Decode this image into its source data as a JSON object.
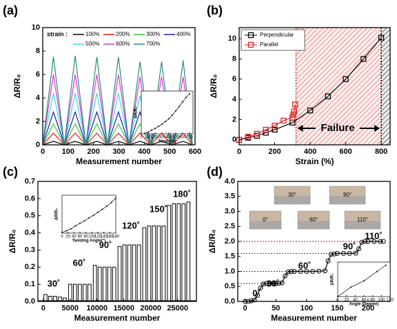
{
  "chart_data": [
    {
      "type": "line",
      "panel_label": "(a)",
      "xlabel": "Measurement number",
      "ylabel": "ΔR/R₀",
      "xlim": [
        0,
        600
      ],
      "xticks": [
        0,
        100,
        200,
        300,
        400,
        500,
        600
      ],
      "ylim": [
        0,
        10
      ],
      "yticks": [
        0,
        2,
        4,
        6,
        8,
        10
      ],
      "legend_title": "strain :",
      "x": [
        0,
        42,
        85,
        128,
        170,
        213,
        255,
        298,
        340,
        383,
        425,
        468,
        510,
        553,
        590
      ],
      "series": [
        {
          "name": "100%",
          "color": "#000000",
          "values": [
            0,
            0.3,
            0,
            0.3,
            0,
            0.3,
            0,
            0.3,
            0,
            0.3,
            0,
            0.3,
            0,
            0.3,
            0
          ]
        },
        {
          "name": "200%",
          "color": "#e8141c",
          "values": [
            0,
            1.0,
            0,
            1.0,
            0,
            1.0,
            0,
            1.0,
            0,
            1.0,
            0,
            1.0,
            0,
            1.0,
            0
          ]
        },
        {
          "name": "300%",
          "color": "#33cc33",
          "values": [
            0,
            1.8,
            0,
            1.8,
            0,
            1.8,
            0,
            1.8,
            0,
            1.8,
            0,
            1.8,
            0,
            1.8,
            0
          ]
        },
        {
          "name": "400%",
          "color": "#1a1aa8",
          "values": [
            0,
            2.8,
            0,
            2.8,
            0,
            2.8,
            0,
            2.8,
            0,
            2.8,
            0,
            2.8,
            0,
            2.8,
            0
          ]
        },
        {
          "name": "500%",
          "color": "#33dddd",
          "values": [
            0,
            4.4,
            0,
            4.4,
            0,
            4.4,
            0,
            4.4,
            0,
            4.2,
            0,
            4.2,
            0,
            4.2,
            0
          ]
        },
        {
          "name": "600%",
          "color": "#dd33dd",
          "values": [
            0,
            6.0,
            0,
            6.0,
            0,
            6.0,
            0,
            6.0,
            0,
            5.8,
            0,
            5.8,
            0,
            5.8,
            0
          ]
        },
        {
          "name": "700%",
          "color": "#2a8a7a",
          "values": [
            0,
            7.5,
            0,
            7.6,
            0,
            7.5,
            0,
            7.5,
            0,
            7.1,
            0,
            7.1,
            0,
            7.2,
            0
          ]
        }
      ]
    },
    {
      "type": "line",
      "xlabel": "Strain(%)",
      "ylabel": "ΔR/R₀",
      "xlim": [
        0,
        750
      ],
      "xticks": [
        0,
        100,
        200,
        300,
        400,
        500,
        600,
        700
      ],
      "ylim": [
        0,
        8
      ],
      "series": [
        {
          "color": "#000000",
          "marker": "dot",
          "x": [
            50,
            100,
            150,
            200,
            250,
            300,
            350,
            400,
            450,
            500,
            550,
            600,
            650,
            700
          ],
          "values": [
            0.1,
            0.3,
            0.7,
            1.0,
            1.4,
            1.8,
            2.3,
            2.8,
            3.5,
            4.3,
            5.1,
            6.0,
            6.8,
            7.5
          ]
        }
      ]
    },
    {
      "type": "line",
      "panel_label": "(b)",
      "xlabel": "Strain (%)",
      "ylabel": "ΔR/R₀",
      "xlim": [
        0,
        850
      ],
      "xticks": [
        0,
        200,
        400,
        600,
        800
      ],
      "ylim": [
        -0.5,
        11.1
      ],
      "yticks": [
        0,
        2,
        4,
        6,
        8,
        10
      ],
      "legend": "upper left",
      "annotations": [
        "Failure"
      ],
      "shaded_regions": [
        {
          "xlim": [
            320,
            800
          ],
          "color": "#e03030"
        },
        {
          "xlim": [
            800,
            850
          ],
          "color": "#000000"
        }
      ],
      "series": [
        {
          "name": "Perpendicular",
          "color": "#000000",
          "marker": "square",
          "x": [
            0,
            50,
            100,
            150,
            200,
            300,
            400,
            500,
            600,
            700,
            800
          ],
          "values": [
            0,
            0.2,
            0.4,
            0.7,
            1.0,
            1.7,
            2.9,
            4.3,
            6.0,
            8.0,
            10.1
          ]
        },
        {
          "name": "Parallel",
          "color": "#e02020",
          "marker": "square",
          "x": [
            0,
            50,
            100,
            150,
            200,
            250,
            300,
            305,
            310,
            315
          ],
          "values": [
            0,
            0.3,
            0.6,
            1.0,
            1.4,
            1.9,
            2.2,
            2.5,
            2.8,
            3.5
          ]
        }
      ]
    },
    {
      "type": "pulse",
      "panel_label": "(c)",
      "xlabel": "Measurement number",
      "ylabel": "ΔR/R₀",
      "xlim": [
        -1000,
        28500
      ],
      "xticks": [
        0,
        5000,
        10000,
        15000,
        20000,
        25000
      ],
      "ylim": [
        0,
        0.7
      ],
      "yticks": [
        {
          "value": 0,
          "label": "0.0"
        },
        0.1,
        0.2,
        0.3,
        0.4,
        0.5,
        0.6,
        0.7
      ],
      "color": "#000000",
      "pulse_width": 600,
      "x": [
        100,
        1000,
        1900,
        2800,
        3700,
        4700,
        5600,
        6500,
        7400,
        8300,
        9300,
        10200,
        11100,
        12000,
        12900,
        13900,
        14800,
        15700,
        16600,
        17500,
        18500,
        19400,
        20300,
        21200,
        22100,
        23100,
        24000,
        24900,
        25800,
        26700
      ],
      "values": [
        0.04,
        0.03,
        0.03,
        0.025,
        0.02,
        0.1,
        0.1,
        0.1,
        0.1,
        0.1,
        0.21,
        0.2,
        0.2,
        0.2,
        0.2,
        0.32,
        0.33,
        0.33,
        0.33,
        0.33,
        0.43,
        0.44,
        0.44,
        0.44,
        0.44,
        0.56,
        0.57,
        0.57,
        0.57,
        0.58
      ],
      "annotations": [
        "30˚",
        "60˚",
        "90˚",
        "120˚",
        "150˚",
        "180˚"
      ]
    },
    {
      "type": "line",
      "xlabel": "Twisting Angle(°)",
      "ylabel": "ΔR/R₀",
      "xlim": [
        0,
        180
      ],
      "xticks": [
        0,
        20,
        40,
        60,
        80,
        100,
        120,
        140,
        160,
        180
      ],
      "ylim": [
        0,
        0.62
      ],
      "series": [
        {
          "color": "#000000",
          "marker": "dot",
          "x": [
            0,
            15,
            30,
            45,
            60,
            75,
            90,
            105,
            120,
            135,
            150,
            165,
            180
          ],
          "values": [
            0.01,
            0.04,
            0.07,
            0.12,
            0.16,
            0.2,
            0.25,
            0.29,
            0.34,
            0.39,
            0.44,
            0.5,
            0.57
          ]
        }
      ]
    },
    {
      "type": "line",
      "panel_label": "(d)",
      "xlabel": "Measurement number",
      "ylabel": "ΔR/R₀",
      "xlim": [
        -12,
        236
      ],
      "xticks": [
        0,
        50,
        100,
        150,
        200
      ],
      "ylim": [
        0,
        4
      ],
      "yticks": [
        {
          "value": 0,
          "label": "0.0"
        },
        0.5,
        {
          "value": 1,
          "label": "1.0"
        },
        1.5,
        {
          "value": 2,
          "label": "2.0"
        },
        2.5,
        {
          "value": 3,
          "label": "3.0"
        },
        3.5,
        {
          "value": 4,
          "label": "4.0"
        }
      ],
      "reference_lines": [
        0.6,
        1.0,
        1.6,
        2.0
      ],
      "reference_color": "#cc0000",
      "annotations": [
        "0˚",
        "30˚",
        "60˚",
        "90˚",
        "110˚"
      ],
      "photo_labels": [
        "30°",
        "90°",
        "0°",
        "60°",
        "110°"
      ],
      "series": [
        {
          "color": "#000000",
          "marker": "circle",
          "x": [
            0,
            5,
            10,
            15,
            20,
            25,
            30,
            35,
            40,
            45,
            50,
            55,
            60,
            65,
            70,
            75,
            80,
            90,
            100,
            110,
            120,
            130,
            135,
            140,
            145,
            150,
            160,
            170,
            180,
            185,
            190,
            195,
            200,
            210,
            220,
            225
          ],
          "values": [
            0,
            0,
            0.02,
            0.05,
            0.2,
            0.45,
            0.58,
            0.6,
            0.6,
            0.61,
            0.6,
            0.6,
            0.62,
            0.85,
            0.98,
            1.0,
            1.0,
            1.0,
            1.0,
            1.0,
            1.01,
            1.02,
            1.35,
            1.57,
            1.58,
            1.6,
            1.6,
            1.6,
            1.61,
            1.75,
            1.97,
            2.0,
            2.0,
            2.0,
            2.0,
            2.0
          ]
        }
      ]
    },
    {
      "type": "line",
      "xlabel": "Angle (Degree)",
      "ylabel": "ΔR/R₀",
      "xlim": [
        0,
        120
      ],
      "xticks": [
        0,
        20,
        40,
        60,
        80,
        100,
        120
      ],
      "ylim": [
        0,
        2.2
      ],
      "series": [
        {
          "color": "#000000",
          "marker": "dot",
          "x": [
            0,
            30,
            60,
            90,
            110
          ],
          "values": [
            0,
            0.6,
            1.0,
            1.6,
            2.0
          ]
        }
      ]
    }
  ]
}
